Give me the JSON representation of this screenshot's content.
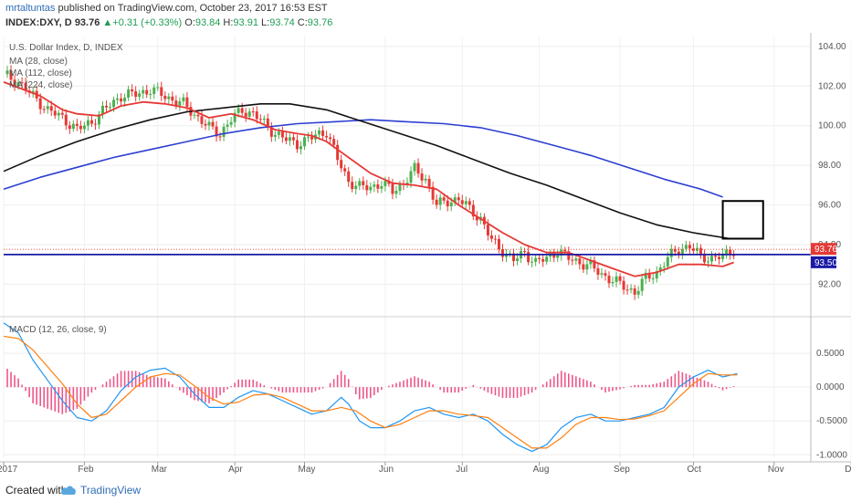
{
  "header": {
    "author": "mrtaltuntas",
    "published_text": " published on TradingView.com, October 23, 2017 16:53 EST",
    "symbol": "INDEX:DXY, D",
    "last": "93.76",
    "change": "+0.31 (+0.33%)",
    "o_label": "O:",
    "o": "93.84",
    "h_label": "H:",
    "h": "93.91",
    "l_label": "L:",
    "l": "93.74",
    "c_label": "C:",
    "c": "93.76"
  },
  "footer": {
    "created_with": "Created with",
    "brand": "TradingView"
  },
  "colors": {
    "bull": "#4caf50",
    "bear": "#e53935",
    "ma_fast": "#e53935",
    "ma_mid": "#111111",
    "ma_slow": "#2c3fd1",
    "hline": "#1a1aa6",
    "macd": "#2196f3",
    "signal": "#ff7f0e",
    "hist": "#e91e63"
  },
  "chart_data": [
    {
      "type": "candlestick",
      "title": "U.S. Dollar Index, D, INDEX",
      "legend": [
        "MA (28, close)",
        "MA (112, close)",
        "MA (224, close)"
      ],
      "ylim": [
        90.5,
        104.5
      ],
      "yticks": [
        92.0,
        94.0,
        96.0,
        98.0,
        100.0,
        102.0,
        104.0
      ],
      "xlim": [
        0,
        220
      ],
      "xticks": [
        {
          "label": "2017",
          "x": 0
        },
        {
          "label": "Feb",
          "x": 22
        },
        {
          "label": "Mar",
          "x": 42
        },
        {
          "label": "Apr",
          "x": 63
        },
        {
          "label": "May",
          "x": 82
        },
        {
          "label": "Jun",
          "x": 104
        },
        {
          "label": "Jul",
          "x": 125
        },
        {
          "label": "Aug",
          "x": 146
        },
        {
          "label": "Sep",
          "x": 168
        },
        {
          "label": "Oct",
          "x": 188
        },
        {
          "label": "Nov",
          "x": 210
        },
        {
          "label": "Dec",
          "x": 231
        }
      ],
      "price_anchors": [
        [
          0,
          102.6
        ],
        [
          4,
          102.2
        ],
        [
          8,
          101.5
        ],
        [
          12,
          100.8
        ],
        [
          16,
          100.4
        ],
        [
          20,
          99.8
        ],
        [
          24,
          100.2
        ],
        [
          28,
          100.9
        ],
        [
          32,
          101.5
        ],
        [
          36,
          101.6
        ],
        [
          40,
          101.8
        ],
        [
          43,
          101.6
        ],
        [
          46,
          101.3
        ],
        [
          49,
          101.1
        ],
        [
          53,
          100.4
        ],
        [
          56,
          99.9
        ],
        [
          59,
          99.6
        ],
        [
          62,
          100.3
        ],
        [
          65,
          100.8
        ],
        [
          68,
          100.6
        ],
        [
          71,
          100.1
        ],
        [
          74,
          99.6
        ],
        [
          77,
          99.3
        ],
        [
          80,
          99.1
        ],
        [
          83,
          99.3
        ],
        [
          86,
          99.6
        ],
        [
          88,
          99.7
        ],
        [
          91,
          98.3
        ],
        [
          94,
          97.2
        ],
        [
          97,
          96.9
        ],
        [
          100,
          96.9
        ],
        [
          103,
          97.1
        ],
        [
          106,
          96.7
        ],
        [
          109,
          97.1
        ],
        [
          112,
          97.8
        ],
        [
          115,
          97.3
        ],
        [
          118,
          96.0
        ],
        [
          121,
          96.2
        ],
        [
          124,
          96.3
        ],
        [
          127,
          95.8
        ],
        [
          130,
          95.3
        ],
        [
          133,
          94.2
        ],
        [
          136,
          93.7
        ],
        [
          139,
          93.2
        ],
        [
          142,
          93.6
        ],
        [
          145,
          93.1
        ],
        [
          148,
          93.3
        ],
        [
          151,
          93.7
        ],
        [
          154,
          93.3
        ],
        [
          157,
          93.1
        ],
        [
          160,
          92.9
        ],
        [
          163,
          92.5
        ],
        [
          166,
          92.2
        ],
        [
          169,
          91.9
        ],
        [
          172,
          91.6
        ],
        [
          175,
          92.3
        ],
        [
          178,
          92.6
        ],
        [
          181,
          93.3
        ],
        [
          184,
          93.8
        ],
        [
          187,
          93.9
        ],
        [
          190,
          93.4
        ],
        [
          193,
          93.3
        ],
        [
          196,
          93.4
        ],
        [
          199,
          93.76
        ]
      ],
      "ma28": [
        [
          0,
          102.2
        ],
        [
          10,
          101.5
        ],
        [
          16,
          100.8
        ],
        [
          20,
          100.6
        ],
        [
          26,
          100.5
        ],
        [
          32,
          101.0
        ],
        [
          38,
          101.2
        ],
        [
          44,
          101.1
        ],
        [
          50,
          100.9
        ],
        [
          56,
          100.4
        ],
        [
          62,
          100.6
        ],
        [
          68,
          100.3
        ],
        [
          74,
          99.8
        ],
        [
          80,
          99.6
        ],
        [
          84,
          99.5
        ],
        [
          88,
          99.2
        ],
        [
          94,
          98.4
        ],
        [
          100,
          97.6
        ],
        [
          106,
          97.1
        ],
        [
          112,
          97.0
        ],
        [
          118,
          96.8
        ],
        [
          124,
          96.0
        ],
        [
          130,
          95.3
        ],
        [
          136,
          94.6
        ],
        [
          142,
          94.0
        ],
        [
          148,
          93.6
        ],
        [
          154,
          93.6
        ],
        [
          160,
          93.2
        ],
        [
          166,
          92.8
        ],
        [
          172,
          92.4
        ],
        [
          178,
          92.6
        ],
        [
          184,
          93.0
        ],
        [
          190,
          93.0
        ],
        [
          196,
          92.9
        ],
        [
          199,
          93.1
        ]
      ],
      "ma112": [
        [
          0,
          97.7
        ],
        [
          10,
          98.5
        ],
        [
          20,
          99.2
        ],
        [
          30,
          99.8
        ],
        [
          40,
          100.3
        ],
        [
          50,
          100.7
        ],
        [
          60,
          100.9
        ],
        [
          70,
          101.1
        ],
        [
          78,
          101.1
        ],
        [
          88,
          100.8
        ],
        [
          98,
          100.2
        ],
        [
          108,
          99.6
        ],
        [
          118,
          99.0
        ],
        [
          128,
          98.3
        ],
        [
          138,
          97.6
        ],
        [
          148,
          97.0
        ],
        [
          158,
          96.3
        ],
        [
          168,
          95.6
        ],
        [
          178,
          95.0
        ],
        [
          188,
          94.6
        ],
        [
          198,
          94.3
        ]
      ],
      "ma224": [
        [
          0,
          96.8
        ],
        [
          10,
          97.4
        ],
        [
          20,
          97.9
        ],
        [
          30,
          98.4
        ],
        [
          40,
          98.8
        ],
        [
          50,
          99.2
        ],
        [
          60,
          99.6
        ],
        [
          70,
          99.9
        ],
        [
          80,
          100.1
        ],
        [
          90,
          100.2
        ],
        [
          100,
          100.3
        ],
        [
          110,
          100.2
        ],
        [
          120,
          100.1
        ],
        [
          130,
          99.9
        ],
        [
          140,
          99.5
        ],
        [
          150,
          99.0
        ],
        [
          160,
          98.5
        ],
        [
          170,
          97.9
        ],
        [
          180,
          97.3
        ],
        [
          190,
          96.8
        ],
        [
          196,
          96.4
        ]
      ],
      "hline": 93.5,
      "last_price_label": "93.76",
      "hline_label": "93.50",
      "box": {
        "x0": 196,
        "x1": 207,
        "y0": 94.3,
        "y1": 96.2
      }
    },
    {
      "type": "line",
      "title": "MACD (12, 26, close, 9)",
      "ylim": [
        -1.05,
        1.0
      ],
      "yticks": [
        0.5,
        0.0,
        -0.5,
        -1.0
      ],
      "ytick_labels": [
        "0.5000",
        "0.0000",
        "-0.5000",
        "-1.0000"
      ],
      "macd": [
        [
          0,
          0.95
        ],
        [
          4,
          0.8
        ],
        [
          8,
          0.4
        ],
        [
          12,
          0.1
        ],
        [
          16,
          -0.2
        ],
        [
          20,
          -0.45
        ],
        [
          24,
          -0.5
        ],
        [
          28,
          -0.35
        ],
        [
          32,
          -0.05
        ],
        [
          36,
          0.15
        ],
        [
          40,
          0.25
        ],
        [
          44,
          0.28
        ],
        [
          48,
          0.15
        ],
        [
          52,
          -0.1
        ],
        [
          56,
          -0.3
        ],
        [
          60,
          -0.3
        ],
        [
          64,
          -0.15
        ],
        [
          68,
          -0.05
        ],
        [
          72,
          -0.1
        ],
        [
          76,
          -0.2
        ],
        [
          80,
          -0.3
        ],
        [
          84,
          -0.4
        ],
        [
          88,
          -0.35
        ],
        [
          92,
          -0.15
        ],
        [
          94,
          -0.25
        ],
        [
          97,
          -0.5
        ],
        [
          100,
          -0.6
        ],
        [
          104,
          -0.6
        ],
        [
          108,
          -0.5
        ],
        [
          112,
          -0.35
        ],
        [
          116,
          -0.3
        ],
        [
          120,
          -0.4
        ],
        [
          124,
          -0.45
        ],
        [
          128,
          -0.4
        ],
        [
          132,
          -0.5
        ],
        [
          136,
          -0.7
        ],
        [
          140,
          -0.85
        ],
        [
          144,
          -0.95
        ],
        [
          148,
          -0.85
        ],
        [
          152,
          -0.6
        ],
        [
          156,
          -0.45
        ],
        [
          160,
          -0.4
        ],
        [
          164,
          -0.5
        ],
        [
          168,
          -0.5
        ],
        [
          172,
          -0.45
        ],
        [
          176,
          -0.4
        ],
        [
          180,
          -0.3
        ],
        [
          184,
          0.0
        ],
        [
          188,
          0.15
        ],
        [
          192,
          0.25
        ],
        [
          196,
          0.15
        ],
        [
          200,
          0.2
        ]
      ],
      "signal": [
        [
          0,
          0.75
        ],
        [
          4,
          0.72
        ],
        [
          8,
          0.55
        ],
        [
          12,
          0.3
        ],
        [
          16,
          0.05
        ],
        [
          20,
          -0.25
        ],
        [
          24,
          -0.45
        ],
        [
          28,
          -0.4
        ],
        [
          32,
          -0.2
        ],
        [
          36,
          0.0
        ],
        [
          40,
          0.15
        ],
        [
          44,
          0.2
        ],
        [
          48,
          0.18
        ],
        [
          52,
          0.02
        ],
        [
          56,
          -0.15
        ],
        [
          60,
          -0.25
        ],
        [
          64,
          -0.22
        ],
        [
          68,
          -0.12
        ],
        [
          72,
          -0.1
        ],
        [
          76,
          -0.15
        ],
        [
          80,
          -0.25
        ],
        [
          84,
          -0.35
        ],
        [
          88,
          -0.35
        ],
        [
          92,
          -0.3
        ],
        [
          96,
          -0.35
        ],
        [
          100,
          -0.5
        ],
        [
          104,
          -0.6
        ],
        [
          108,
          -0.55
        ],
        [
          112,
          -0.45
        ],
        [
          116,
          -0.35
        ],
        [
          120,
          -0.35
        ],
        [
          124,
          -0.4
        ],
        [
          128,
          -0.42
        ],
        [
          132,
          -0.45
        ],
        [
          136,
          -0.6
        ],
        [
          140,
          -0.75
        ],
        [
          144,
          -0.9
        ],
        [
          148,
          -0.9
        ],
        [
          152,
          -0.75
        ],
        [
          156,
          -0.55
        ],
        [
          160,
          -0.45
        ],
        [
          164,
          -0.45
        ],
        [
          168,
          -0.48
        ],
        [
          172,
          -0.47
        ],
        [
          176,
          -0.42
        ],
        [
          180,
          -0.35
        ],
        [
          184,
          -0.15
        ],
        [
          188,
          0.05
        ],
        [
          192,
          0.2
        ],
        [
          196,
          0.18
        ],
        [
          200,
          0.18
        ]
      ]
    }
  ]
}
